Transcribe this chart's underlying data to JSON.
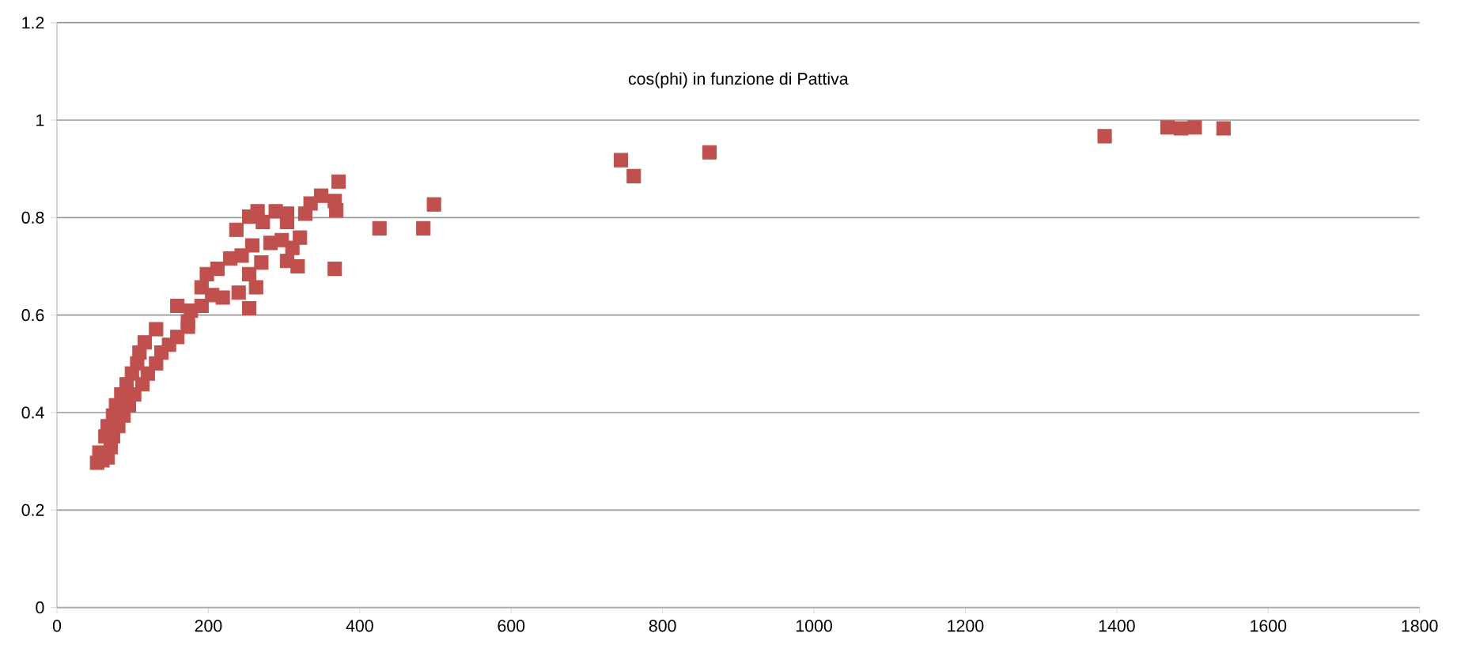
{
  "chart_data": {
    "type": "scatter",
    "title": "cos(phi) in funzione di Pattiva",
    "x": [
      53,
      60,
      67,
      56,
      71,
      64,
      74,
      67,
      81,
      74,
      88,
      78,
      95,
      85,
      102,
      92,
      113,
      99,
      120,
      106,
      131,
      109,
      138,
      116,
      148,
      131,
      159,
      173,
      159,
      177,
      191,
      173,
      191,
      198,
      212,
      205,
      219,
      229,
      244,
      240,
      254,
      263,
      254,
      258,
      270,
      237,
      254,
      265,
      272,
      289,
      304,
      304,
      282,
      297,
      311,
      321,
      304,
      318,
      328,
      335,
      349,
      367,
      369,
      372,
      367,
      426,
      484,
      498,
      745,
      762,
      862,
      1384,
      1467,
      1485,
      1503,
      1541
    ],
    "series": [
      {
        "color": "#c0504d",
        "values": [
          0.297,
          0.302,
          0.308,
          0.318,
          0.329,
          0.351,
          0.351,
          0.372,
          0.372,
          0.394,
          0.394,
          0.415,
          0.415,
          0.437,
          0.437,
          0.458,
          0.458,
          0.48,
          0.48,
          0.501,
          0.501,
          0.523,
          0.523,
          0.544,
          0.539,
          0.571,
          0.555,
          0.576,
          0.619,
          0.609,
          0.619,
          0.587,
          0.657,
          0.684,
          0.695,
          0.641,
          0.636,
          0.716,
          0.722,
          0.646,
          0.614,
          0.657,
          0.684,
          0.743,
          0.708,
          0.775,
          0.802,
          0.813,
          0.791,
          0.813,
          0.808,
          0.791,
          0.748,
          0.754,
          0.738,
          0.759,
          0.711,
          0.7,
          0.808,
          0.829,
          0.845,
          0.834,
          0.815,
          0.874,
          0.695,
          0.778,
          0.778,
          0.827,
          0.918,
          0.885,
          0.934,
          0.967,
          0.985,
          0.983,
          0.985,
          0.983
        ]
      }
    ],
    "xlim": [
      0,
      1800
    ],
    "xticks": [
      0,
      200,
      400,
      600,
      800,
      1000,
      1200,
      1400,
      1600,
      1800
    ],
    "ylim": [
      0,
      1.2
    ],
    "yticks": [
      0,
      0.2,
      0.4,
      0.6,
      0.8,
      1,
      1.2
    ],
    "grid": "y",
    "marker": "square"
  }
}
